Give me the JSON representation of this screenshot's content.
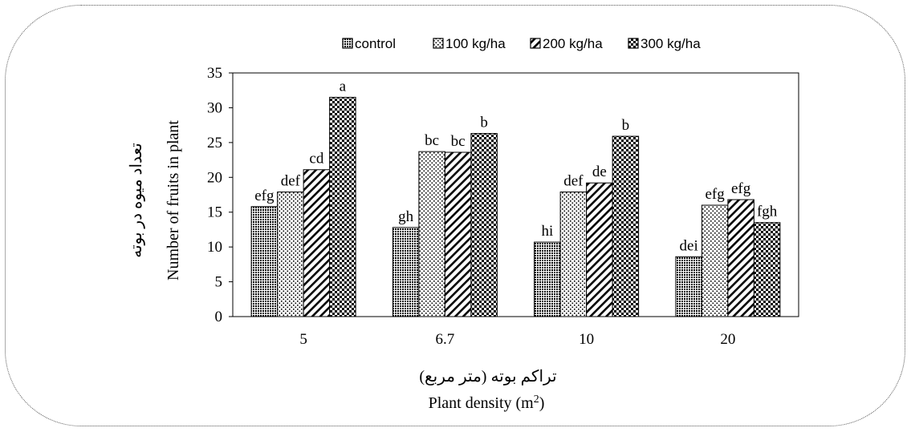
{
  "chart_data": {
    "type": "bar",
    "categories": [
      "5",
      "6.7",
      "10",
      "20"
    ],
    "series": [
      {
        "name": "control",
        "pattern": "dots-dense",
        "values": [
          15.8,
          12.8,
          10.7,
          8.6
        ]
      },
      {
        "name": "100 kg/ha",
        "pattern": "dots-sparse",
        "values": [
          17.9,
          23.7,
          17.9,
          16.0
        ]
      },
      {
        "name": "200 kg/ha",
        "pattern": "diagonal",
        "values": [
          21.1,
          23.6,
          19.2,
          16.8
        ]
      },
      {
        "name": "300 kg/ha",
        "pattern": "checker",
        "values": [
          31.5,
          26.3,
          25.9,
          13.5
        ]
      }
    ],
    "letters": [
      [
        "efg",
        "gh",
        "hi",
        "dei"
      ],
      [
        "def",
        "bc",
        "def",
        "efg"
      ],
      [
        "cd",
        "bc",
        "de",
        "efg"
      ],
      [
        "a",
        "b",
        "b",
        "fgh"
      ]
    ],
    "title": "",
    "xlabel": "Plant density (m2)",
    "xlabel_fa": "تراکم بوته (متر مربع)",
    "ylabel": "Number of fruits in plant",
    "ylabel_fa": "تعداد میوه در بوته",
    "ylim": [
      0,
      35
    ],
    "yticks": [
      0,
      5,
      10,
      15,
      20,
      25,
      30,
      35
    ],
    "grid": false,
    "legend_position": "top"
  }
}
